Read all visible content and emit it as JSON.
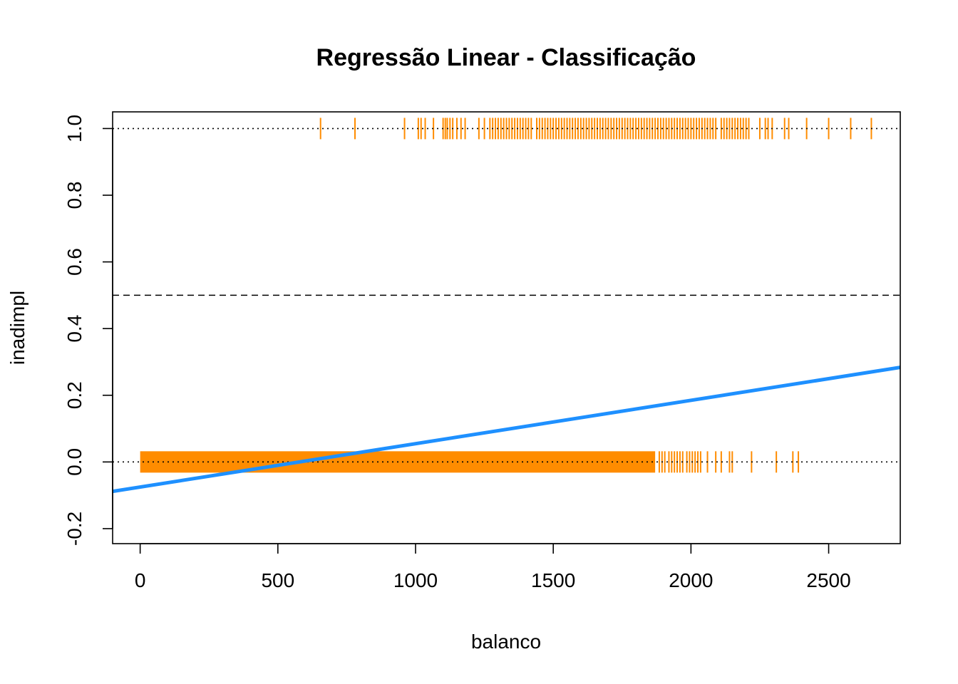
{
  "chart_data": {
    "type": "scatter",
    "title": "Regressão Linear - Classificação",
    "xlabel": "balanco",
    "ylabel": "inadimpl",
    "xlim": [
      -100,
      2760
    ],
    "ylim": [
      -0.245,
      1.05
    ],
    "x_ticks": [
      "0",
      "500",
      "1000",
      "1500",
      "2000",
      "2500"
    ],
    "x_tick_values": [
      0,
      500,
      1000,
      1500,
      2000,
      2500
    ],
    "y_ticks": [
      "-0.2",
      "0.0",
      "0.2",
      "0.4",
      "0.6",
      "0.8",
      "1.0"
    ],
    "y_tick_values": [
      -0.2,
      0.0,
      0.2,
      0.4,
      0.6,
      0.8,
      1.0
    ],
    "grid": false,
    "reference_lines": [
      {
        "y": 1.0,
        "style": "dotted",
        "color": "#000000"
      },
      {
        "y": 0.5,
        "style": "dashed",
        "color": "#000000"
      },
      {
        "y": 0.0,
        "style": "dotted",
        "color": "#000000"
      }
    ],
    "regression_line": {
      "intercept": -0.0752,
      "slope": 0.00013,
      "color": "#1E90FF"
    },
    "rug_color": "#FF8C00",
    "rug_y1": [
      655,
      780,
      960,
      1010,
      1020,
      1035,
      1065,
      1100,
      1108,
      1115,
      1125,
      1135,
      1150,
      1165,
      1180,
      1230,
      1250,
      1270,
      1280,
      1290,
      1300,
      1310,
      1320,
      1330,
      1340,
      1350,
      1360,
      1370,
      1380,
      1390,
      1400,
      1410,
      1420,
      1440,
      1450,
      1460,
      1470,
      1480,
      1490,
      1500,
      1510,
      1520,
      1530,
      1540,
      1550,
      1560,
      1570,
      1580,
      1590,
      1600,
      1610,
      1620,
      1630,
      1640,
      1650,
      1660,
      1670,
      1680,
      1690,
      1700,
      1710,
      1720,
      1730,
      1740,
      1750,
      1760,
      1770,
      1780,
      1790,
      1800,
      1810,
      1820,
      1830,
      1840,
      1850,
      1860,
      1870,
      1880,
      1890,
      1900,
      1910,
      1920,
      1930,
      1940,
      1950,
      1960,
      1970,
      1980,
      1990,
      2000,
      2010,
      2020,
      2030,
      2040,
      2050,
      2060,
      2070,
      2080,
      2090,
      2110,
      2120,
      2130,
      2140,
      2150,
      2160,
      2170,
      2180,
      2190,
      2200,
      2210,
      2250,
      2270,
      2280,
      2295,
      2340,
      2355,
      2420,
      2500,
      2580,
      2655
    ],
    "rug_y0_dense_range": [
      0,
      1870
    ],
    "rug_y0": [
      1885,
      1895,
      1905,
      1920,
      1930,
      1940,
      1950,
      1960,
      1970,
      1985,
      1995,
      2005,
      2015,
      2025,
      2035,
      2060,
      2090,
      2110,
      2140,
      2150,
      2220,
      2310,
      2370,
      2390
    ]
  }
}
